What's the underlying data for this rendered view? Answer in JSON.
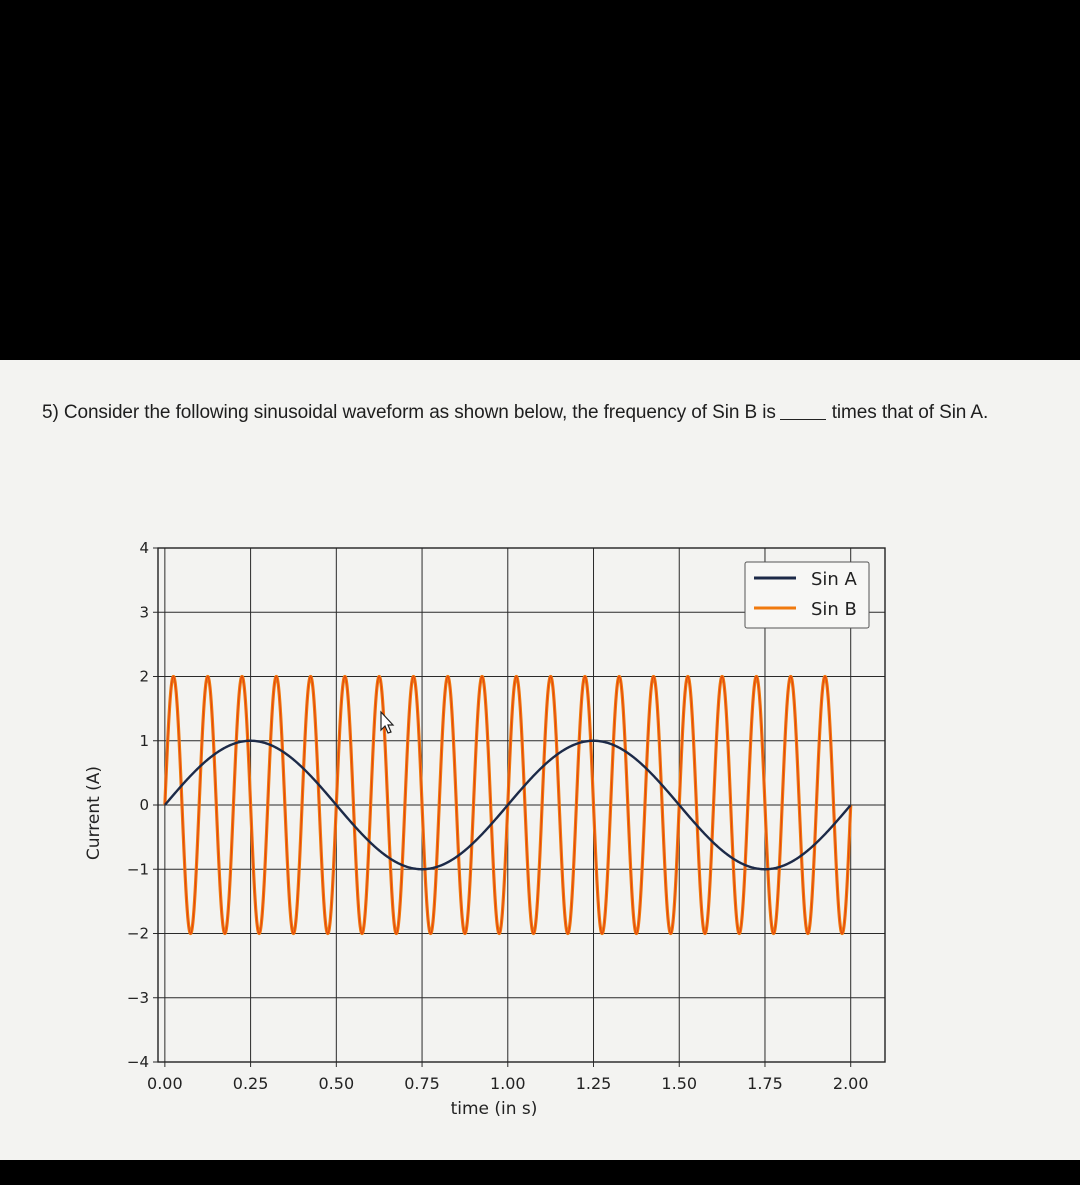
{
  "question": {
    "prefix": "5) Consider the following sinusoidal waveform as shown below, the frequency of Sin B is",
    "suffix": "times that of Sin A."
  },
  "colors": {
    "sin_a": "#1c2a48",
    "sin_b": "#f07a0e",
    "sin_b_inner": "#e03a10",
    "grid": "#2a2a2a",
    "paper": "#f3f3f1",
    "page": "#000000"
  },
  "chart_data": {
    "type": "line",
    "xlabel": "time (in s)",
    "ylabel": "Current (A)",
    "xlim": [
      -0.02,
      2.1
    ],
    "ylim": [
      -4,
      4
    ],
    "x_ticks": [
      "0.00",
      "0.25",
      "0.50",
      "0.75",
      "1.00",
      "1.25",
      "1.50",
      "1.75",
      "2.00"
    ],
    "y_ticks": [
      "4",
      "3",
      "2",
      "1",
      "0",
      "−1",
      "−2",
      "−3",
      "−4"
    ],
    "grid": true,
    "legend_position": "top-right",
    "series": [
      {
        "name": "Sin A",
        "amplitude": 1,
        "frequency_hz": 1,
        "x_range": [
          0,
          2
        ],
        "color": "#1c2a48"
      },
      {
        "name": "Sin B",
        "amplitude": 2,
        "frequency_hz": 10,
        "x_range": [
          0,
          2
        ],
        "color": "#f07a0e"
      }
    ]
  }
}
